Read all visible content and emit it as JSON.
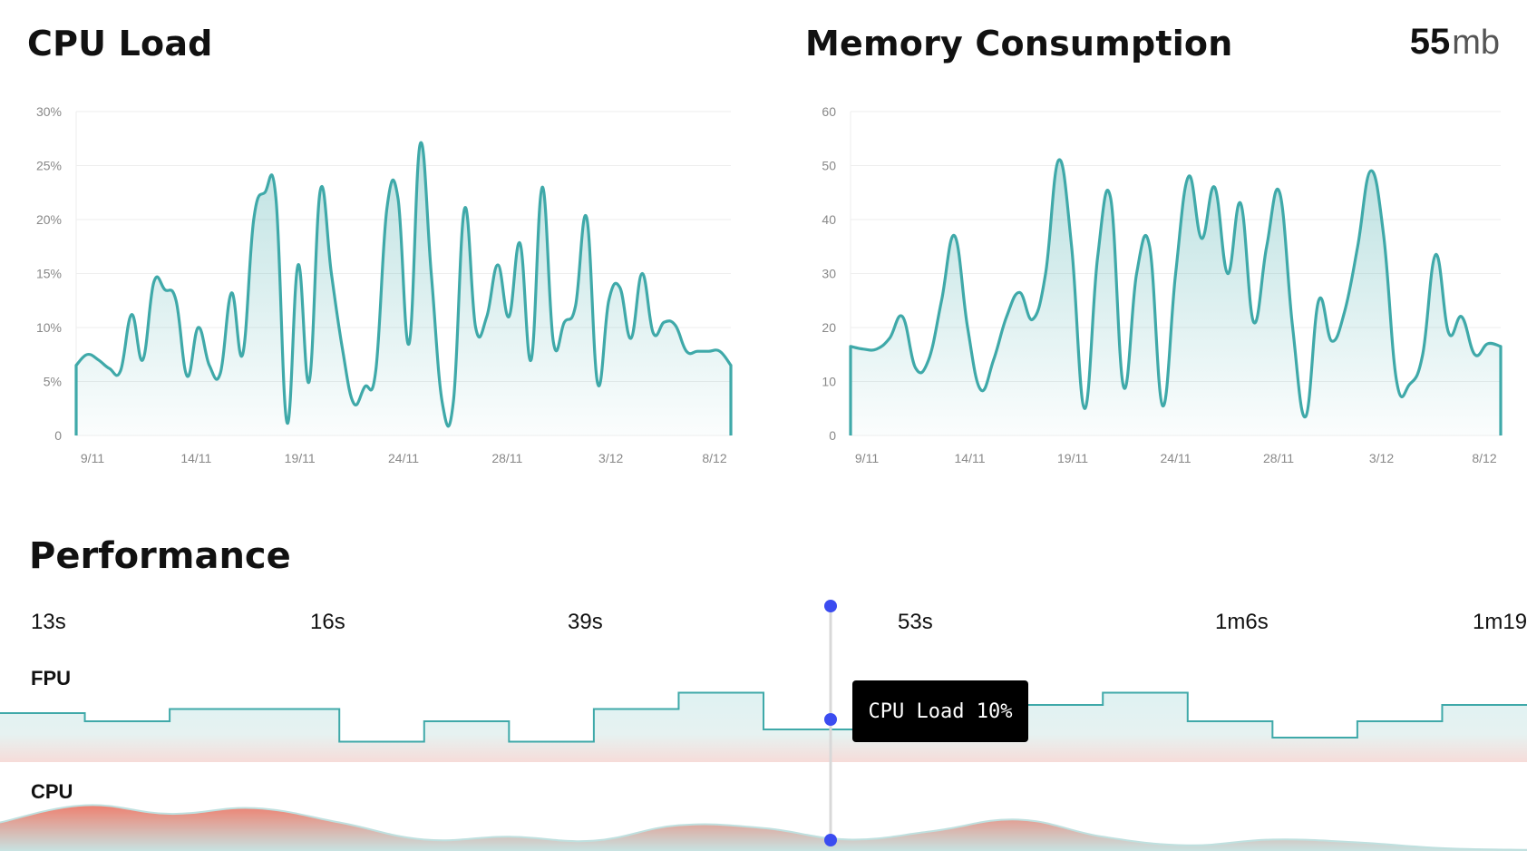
{
  "cpu_panel": {
    "title": "CPU Load"
  },
  "memory_panel": {
    "title": "Memory Consumption",
    "current_value": "55",
    "current_unit": "mb"
  },
  "performance": {
    "title": "Performance",
    "time_labels": [
      "13s",
      "16s",
      "39s",
      "53s",
      "1m6s",
      "1m19"
    ],
    "tracks": [
      "FPU",
      "CPU"
    ],
    "tooltip": "CPU Load 10%"
  },
  "colors": {
    "teal": "#3fa9a9",
    "teal_fill": "#dff2f2",
    "red": "#ee8070",
    "marker": "#3b4cf0"
  },
  "chart_data": [
    {
      "type": "area",
      "title": "CPU Load",
      "x_ticks": [
        "9/11",
        "14/11",
        "19/11",
        "24/11",
        "28/11",
        "3/12",
        "8/12"
      ],
      "y_ticks": [
        "0",
        "5%",
        "10%",
        "15%",
        "20%",
        "25%",
        "30%"
      ],
      "ylim": [
        0,
        30
      ],
      "grid": true,
      "values": [
        6.5,
        7.5,
        7,
        6.2,
        6,
        11.2,
        7,
        14.2,
        13.5,
        12.5,
        5.5,
        10,
        6.5,
        5.8,
        13.2,
        7.5,
        20,
        22.5,
        22,
        1.2,
        15.8,
        5,
        22.7,
        15,
        8,
        3,
        4.5,
        6,
        21,
        22,
        8.5,
        27,
        15,
        3,
        3.2,
        21,
        10,
        11,
        15.8,
        11,
        17.8,
        7,
        23,
        8.7,
        10.5,
        12,
        20.2,
        4.8,
        12.5,
        13.7,
        9,
        15,
        9.5,
        10.5,
        10.2,
        7.8,
        7.8,
        7.8,
        7.8,
        6.5
      ]
    },
    {
      "type": "area",
      "title": "Memory Consumption",
      "x_ticks": [
        "9/11",
        "14/11",
        "19/11",
        "24/11",
        "28/11",
        "3/12",
        "8/12"
      ],
      "y_ticks": [
        "0",
        "10",
        "20",
        "30",
        "40",
        "50",
        "60"
      ],
      "ylim": [
        0,
        60
      ],
      "grid": true,
      "values": [
        16.5,
        16,
        16,
        18,
        22,
        12.5,
        14,
        25,
        37,
        20,
        8.5,
        14,
        22,
        26.5,
        21.5,
        30,
        51,
        35,
        5,
        33,
        44,
        9,
        30,
        35,
        5.5,
        30,
        48,
        36.5,
        46,
        30,
        43,
        21,
        35,
        45,
        20,
        3.5,
        25,
        17.5,
        23,
        35,
        49,
        37,
        10,
        9.5,
        15,
        33.5,
        19,
        22,
        15,
        17,
        16.5
      ]
    },
    {
      "type": "line",
      "title": "",
      "track": "FPU",
      "values": [
        6,
        5,
        6.5,
        6.5,
        2.5,
        5,
        2.5,
        6.5,
        8.5,
        4,
        4,
        3.5,
        7,
        8.5,
        5,
        3,
        5,
        7
      ]
    },
    {
      "type": "area",
      "title": "",
      "track": "CPU",
      "values": [
        5,
        8,
        6.5,
        7.5,
        5,
        2,
        2.5,
        1.8,
        4.5,
        4,
        2,
        3.5,
        5.5,
        2.5,
        1,
        2,
        1.5,
        0.5,
        0.2
      ]
    }
  ]
}
